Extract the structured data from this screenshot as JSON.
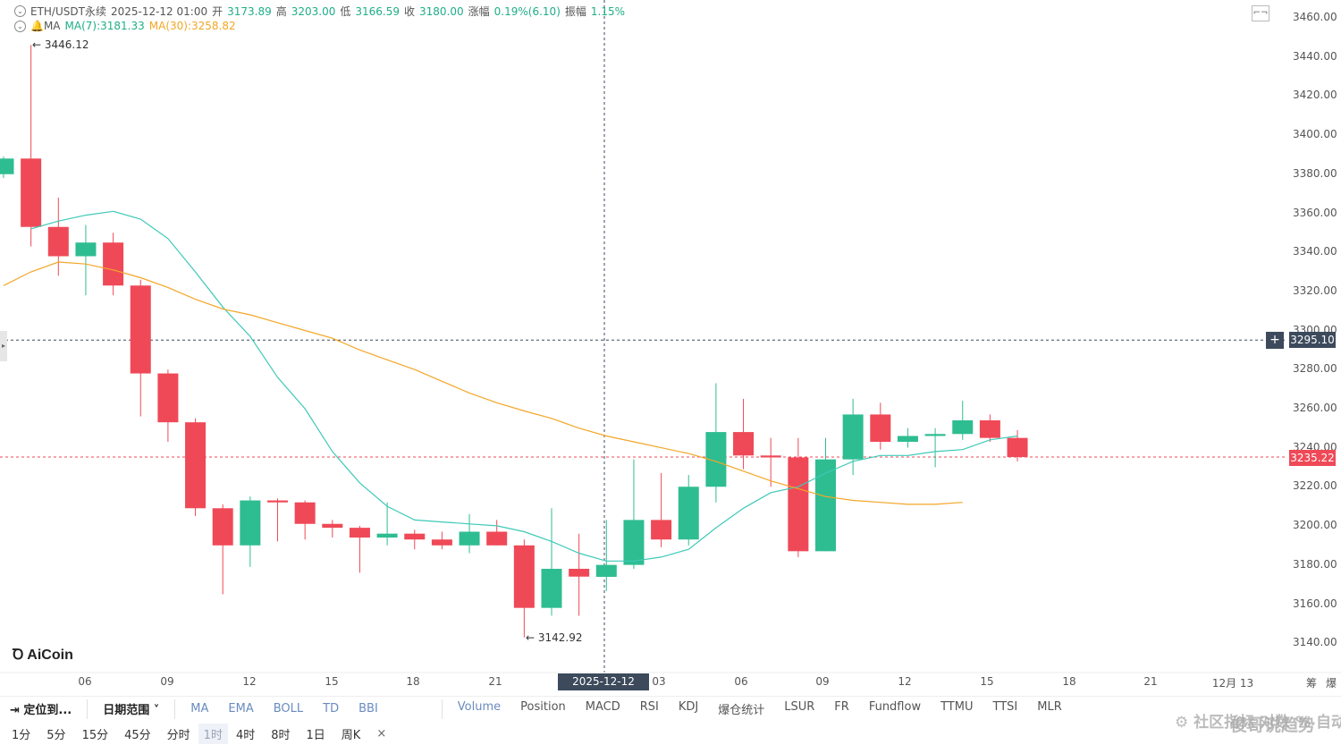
{
  "header": {
    "symbol": "ETH/USDT永续",
    "datetime": "2025-12-12 01:00",
    "open_label": "开",
    "open": "3173.89",
    "high_label": "高",
    "high": "3203.00",
    "low_label": "低",
    "low": "3166.59",
    "close_label": "收",
    "close": "3180.00",
    "change_label": "涨幅",
    "change": "0.19%(6.10)",
    "amp_label": "振幅",
    "amp": "1.15%",
    "ma_title": "MA",
    "ma7": "MA(7):3181.33",
    "ma30": "MA(30):3258.82"
  },
  "colors": {
    "up": "#2ebd91",
    "down": "#ef4957",
    "ma7": "#3ec9b8",
    "ma30": "#f3a627",
    "crosshair": "#3c4a5c"
  },
  "y_axis_labels": [
    "3460.00",
    "3440.00",
    "3420.00",
    "3400.00",
    "3380.00",
    "3360.00",
    "3340.00",
    "3320.00",
    "3300.00",
    "3280.00",
    "3260.00",
    "3240.00",
    "3220.00",
    "3200.00",
    "3180.00",
    "3160.00",
    "3140.00"
  ],
  "crosshair_price": "3295.10",
  "last_price": "3235.22",
  "crosshair_time": "2025-12-12 01:00",
  "high_marker": "← 3446.12",
  "low_marker": "← 3142.92",
  "x_axis_labels": [
    "06",
    "09",
    "12",
    "15",
    "18",
    "21",
    "03",
    "06",
    "09",
    "12",
    "15",
    "18",
    "21",
    "12月 13"
  ],
  "right_controls": {
    "chip": "筹",
    "layout": "爆"
  },
  "logo": "AiCoin",
  "toolbar1": {
    "locate": "定位到...",
    "date_range": "日期范围",
    "indicators_main": [
      "MA",
      "EMA",
      "BOLL",
      "TD",
      "BBI"
    ],
    "indicators_sub": [
      "Volume",
      "Position",
      "MACD",
      "RSI",
      "KDJ",
      "爆仓统计",
      "LSUR",
      "FR",
      "Fundflow",
      "TTMU",
      "TTSI",
      "MLR"
    ],
    "community": "社区指标",
    "log": "对数",
    "percent": "%",
    "auto": "自动"
  },
  "timeframes": [
    "1分",
    "5分",
    "15分",
    "45分",
    "分时",
    "1时",
    "4时",
    "8时",
    "1日",
    "周K"
  ],
  "active_timeframe": "1时",
  "close_x": "×",
  "watermark": "俊哥说趋势",
  "chart_data": {
    "type": "candlestick",
    "interval": "1h",
    "y_range": [
      3130,
      3466
    ],
    "candles": [
      {
        "o": 3380,
        "h": 3389,
        "l": 3378,
        "c": 3388
      },
      {
        "o": 3388,
        "h": 3446.12,
        "l": 3343,
        "c": 3353
      },
      {
        "o": 3353,
        "h": 3368,
        "l": 3328,
        "c": 3338
      },
      {
        "o": 3338,
        "h": 3354,
        "l": 3318,
        "c": 3345
      },
      {
        "o": 3345,
        "h": 3350,
        "l": 3318,
        "c": 3323
      },
      {
        "o": 3323,
        "h": 3326,
        "l": 3256,
        "c": 3278
      },
      {
        "o": 3278,
        "h": 3280,
        "l": 3243,
        "c": 3253
      },
      {
        "o": 3253,
        "h": 3255,
        "l": 3205,
        "c": 3209
      },
      {
        "o": 3209,
        "h": 3211,
        "l": 3165,
        "c": 3190
      },
      {
        "o": 3190,
        "h": 3215,
        "l": 3179,
        "c": 3213
      },
      {
        "o": 3213,
        "h": 3214,
        "l": 3192,
        "c": 3212
      },
      {
        "o": 3212,
        "h": 3213,
        "l": 3193,
        "c": 3201
      },
      {
        "o": 3201,
        "h": 3203,
        "l": 3194,
        "c": 3199
      },
      {
        "o": 3199,
        "h": 3200,
        "l": 3176,
        "c": 3194
      },
      {
        "o": 3194,
        "h": 3212,
        "l": 3190,
        "c": 3196
      },
      {
        "o": 3196,
        "h": 3198,
        "l": 3188,
        "c": 3193
      },
      {
        "o": 3193,
        "h": 3197,
        "l": 3188,
        "c": 3190
      },
      {
        "o": 3190,
        "h": 3206,
        "l": 3186,
        "c": 3197
      },
      {
        "o": 3197,
        "h": 3203,
        "l": 3190,
        "c": 3190
      },
      {
        "o": 3190,
        "h": 3193,
        "l": 3142.92,
        "c": 3158
      },
      {
        "o": 3158,
        "h": 3209,
        "l": 3154,
        "c": 3178
      },
      {
        "o": 3178,
        "h": 3196,
        "l": 3154,
        "c": 3174
      },
      {
        "o": 3173.89,
        "h": 3203,
        "l": 3166.59,
        "c": 3180
      },
      {
        "o": 3180,
        "h": 3234,
        "l": 3178,
        "c": 3203
      },
      {
        "o": 3203,
        "h": 3227,
        "l": 3189,
        "c": 3193
      },
      {
        "o": 3193,
        "h": 3226,
        "l": 3190,
        "c": 3220
      },
      {
        "o": 3220,
        "h": 3273,
        "l": 3212,
        "c": 3248
      },
      {
        "o": 3248,
        "h": 3265,
        "l": 3229,
        "c": 3236
      },
      {
        "o": 3236,
        "h": 3245,
        "l": 3220,
        "c": 3235
      },
      {
        "o": 3235,
        "h": 3245,
        "l": 3184,
        "c": 3187
      },
      {
        "o": 3187,
        "h": 3245,
        "l": 3187,
        "c": 3234
      },
      {
        "o": 3234,
        "h": 3265,
        "l": 3226,
        "c": 3257
      },
      {
        "o": 3257,
        "h": 3263,
        "l": 3239,
        "c": 3243
      },
      {
        "o": 3243,
        "h": 3250,
        "l": 3240,
        "c": 3246
      },
      {
        "o": 3246,
        "h": 3250,
        "l": 3230,
        "c": 3247
      },
      {
        "o": 3247,
        "h": 3264,
        "l": 3244,
        "c": 3254
      },
      {
        "o": 3254,
        "h": 3257,
        "l": 3243,
        "c": 3245
      },
      {
        "o": 3245,
        "h": 3249,
        "l": 3233,
        "c": 3235.22
      }
    ],
    "ma7": [
      null,
      3352,
      3356,
      3359,
      3361,
      3357,
      3347,
      3330,
      3312,
      3297,
      3276,
      3260,
      3238,
      3222,
      3210,
      3203,
      3202,
      3201,
      3200,
      3197,
      3192,
      3186,
      3182,
      3182,
      3184,
      3188,
      3199,
      3209,
      3217,
      3220,
      3227,
      3233,
      3236,
      3236,
      3238,
      3239,
      3244,
      3246
    ],
    "ma30": [
      3323,
      3330,
      3335,
      3334,
      3331,
      3327,
      3322,
      3316,
      3311,
      3308,
      3304,
      3300,
      3296,
      3290,
      3285,
      3280,
      3274,
      3268,
      3263,
      3258.82,
      3255,
      3250,
      3246,
      3243,
      3240,
      3237,
      3233,
      3228,
      3223,
      3219,
      3215,
      3213,
      3212,
      3211,
      3211,
      3212
    ]
  }
}
